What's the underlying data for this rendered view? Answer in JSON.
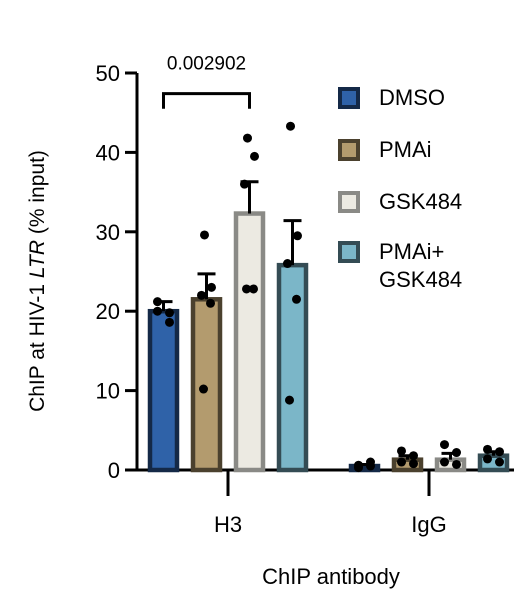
{
  "chart_data": {
    "type": "bar",
    "ylabel_prefix": "ChIP at HIV-1 ",
    "ylabel_italic": "LTR",
    "ylabel_suffix": " (% input)",
    "xlabel": "ChIP antibody",
    "ylim": [
      0,
      50
    ],
    "yticks": [
      0,
      10,
      20,
      30,
      40,
      50
    ],
    "categories": [
      "H3",
      "IgG"
    ],
    "significance": {
      "label": "0.002902",
      "from_series": 0,
      "to_series": 2,
      "category": 0
    },
    "series": [
      {
        "name": "DMSO",
        "color": "#2f62a8",
        "values": [
          20.0,
          0.5
        ],
        "errors": [
          1.2,
          0.2
        ],
        "points": [
          [
            21.2,
            18.6,
            20.0,
            19.8
          ],
          [
            0.3,
            0.5,
            0.6,
            1.0
          ]
        ]
      },
      {
        "name": "PMAi",
        "color": "#b39b6e",
        "values": [
          21.5,
          1.3
        ],
        "errors": [
          3.2,
          0.5
        ],
        "points": [
          [
            29.6,
            23.0,
            22.0,
            21.0,
            10.2
          ],
          [
            2.4,
            1.8,
            1.0,
            0.8
          ]
        ]
      },
      {
        "name": "GSK484",
        "color": "#eceae2",
        "values": [
          32.3,
          1.3
        ],
        "errors": [
          4.0,
          0.8
        ],
        "points": [
          [
            41.8,
            39.5,
            36.0,
            22.8,
            22.8
          ],
          [
            3.2,
            2.2,
            1.0,
            0.7
          ]
        ]
      },
      {
        "name": "PMAi+\nGSK484",
        "color": "#7bb6c8",
        "values": [
          25.8,
          1.8
        ],
        "errors": [
          5.6,
          0.5
        ],
        "points": [
          [
            43.3,
            29.5,
            26.0,
            21.5,
            8.8
          ],
          [
            2.6,
            2.3,
            1.4,
            1.0
          ]
        ]
      }
    ],
    "legend_position": "right"
  }
}
